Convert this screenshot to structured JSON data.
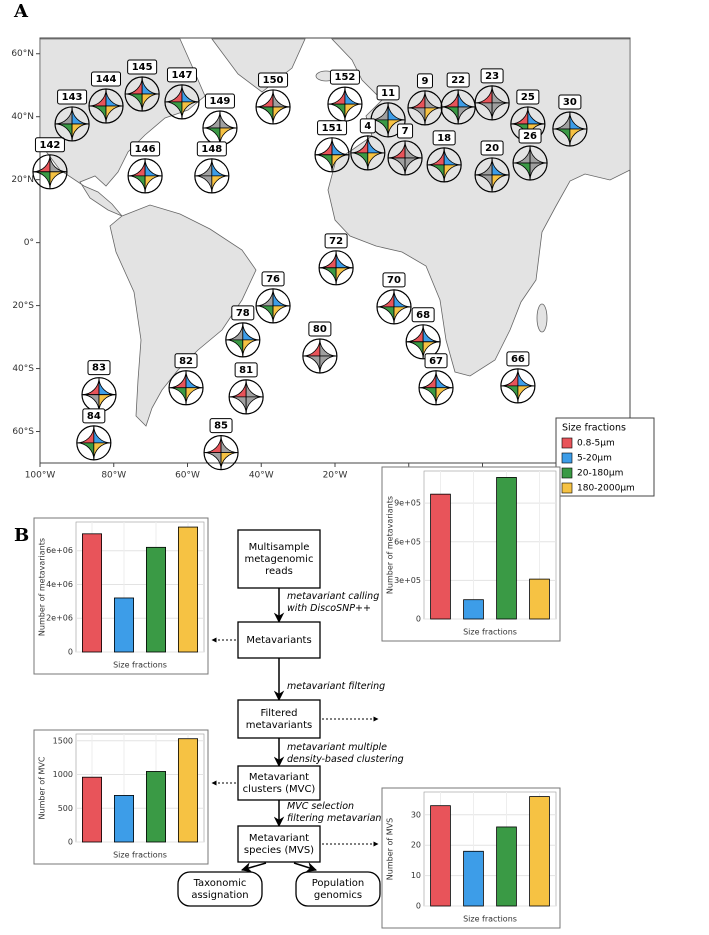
{
  "panel_labels": [
    "A",
    "B"
  ],
  "map": {
    "xlim": [
      -100,
      60
    ],
    "ylim": [
      -70,
      65
    ],
    "xticks": [
      {
        "value": -100,
        "label": "100°W"
      },
      {
        "value": -80,
        "label": "80°W"
      },
      {
        "value": -60,
        "label": "60°W"
      },
      {
        "value": -40,
        "label": "40°W"
      },
      {
        "value": -20,
        "label": "20°W"
      },
      {
        "value": 0,
        "label": "0°"
      },
      {
        "value": 20,
        "label": "20°E"
      },
      {
        "value": 40,
        "label": "40°E"
      },
      {
        "value": 60,
        "label": "60°E"
      }
    ],
    "yticks": [
      {
        "value": -60,
        "label": "60°S"
      },
      {
        "value": -40,
        "label": "40°S"
      },
      {
        "value": -20,
        "label": "20°S"
      },
      {
        "value": 0,
        "label": "0°"
      },
      {
        "value": 20,
        "label": "20°N"
      },
      {
        "value": 40,
        "label": "40°N"
      },
      {
        "value": 60,
        "label": "60°N"
      }
    ],
    "missing_color": "#a0a0a0",
    "legend": {
      "title": "Size fractions",
      "labels": [
        "0.8-5µm",
        "5-20µm",
        "20-180µm",
        "180-2000µm"
      ],
      "colors": [
        "#e8545a",
        "#3d9de8",
        "#3a9a45",
        "#f6c243"
      ]
    },
    "stations": [
      {
        "label": "142",
        "lon": -97.3,
        "lat": 22.5,
        "fractions": [
          true,
          false,
          true,
          true
        ]
      },
      {
        "label": "143",
        "lon": -91.3,
        "lat": 37.7,
        "fractions": [
          false,
          true,
          true,
          true
        ]
      },
      {
        "label": "144",
        "lon": -82.1,
        "lat": 43.4,
        "fractions": [
          true,
          true,
          true,
          true
        ]
      },
      {
        "label": "145",
        "lon": -72.3,
        "lat": 47.2,
        "fractions": [
          true,
          true,
          true,
          true
        ]
      },
      {
        "label": "147",
        "lon": -61.5,
        "lat": 44.7,
        "fractions": [
          true,
          true,
          true,
          true
        ]
      },
      {
        "label": "149",
        "lon": -51.2,
        "lat": 36.4,
        "fractions": [
          false,
          false,
          true,
          true
        ]
      },
      {
        "label": "146",
        "lon": -71.5,
        "lat": 21.2,
        "fractions": [
          true,
          true,
          true,
          true
        ]
      },
      {
        "label": "148",
        "lon": -53.4,
        "lat": 21.2,
        "fractions": [
          false,
          true,
          false,
          true
        ]
      },
      {
        "label": "150",
        "lon": -36.8,
        "lat": 43.1,
        "fractions": [
          true,
          false,
          true,
          true
        ]
      },
      {
        "label": "152",
        "lon": -17.3,
        "lat": 44.0,
        "fractions": [
          true,
          true,
          true,
          true
        ]
      },
      {
        "label": "151",
        "lon": -20.8,
        "lat": 27.9,
        "fractions": [
          true,
          true,
          true,
          true
        ]
      },
      {
        "label": "11",
        "lon": -5.6,
        "lat": 39.0,
        "fractions": [
          false,
          true,
          true,
          true
        ]
      },
      {
        "label": "4",
        "lon": -11.1,
        "lat": 28.5,
        "fractions": [
          true,
          true,
          true,
          true
        ]
      },
      {
        "label": "7",
        "lon": -1.0,
        "lat": 26.9,
        "fractions": [
          true,
          false,
          false,
          false
        ]
      },
      {
        "label": "9",
        "lon": 4.4,
        "lat": 42.8,
        "fractions": [
          true,
          false,
          false,
          true
        ]
      },
      {
        "label": "22",
        "lon": 13.4,
        "lat": 43.1,
        "fractions": [
          true,
          true,
          true,
          false
        ]
      },
      {
        "label": "23",
        "lon": 22.6,
        "lat": 44.4,
        "fractions": [
          true,
          false,
          false,
          false
        ]
      },
      {
        "label": "25",
        "lon": 32.3,
        "lat": 37.7,
        "fractions": [
          true,
          true,
          true,
          true
        ]
      },
      {
        "label": "30",
        "lon": 43.7,
        "lat": 36.1,
        "fractions": [
          false,
          true,
          true,
          true
        ]
      },
      {
        "label": "18",
        "lon": 9.6,
        "lat": 24.7,
        "fractions": [
          true,
          true,
          true,
          true
        ]
      },
      {
        "label": "20",
        "lon": 22.6,
        "lat": 21.5,
        "fractions": [
          false,
          true,
          false,
          true
        ]
      },
      {
        "label": "26",
        "lon": 32.9,
        "lat": 25.3,
        "fractions": [
          false,
          false,
          true,
          false
        ]
      },
      {
        "label": "72",
        "lon": -19.7,
        "lat": -8.0,
        "fractions": [
          true,
          true,
          true,
          true
        ]
      },
      {
        "label": "76",
        "lon": -36.8,
        "lat": -20.1,
        "fractions": [
          false,
          true,
          true,
          true
        ]
      },
      {
        "label": "70",
        "lon": -4.0,
        "lat": -20.4,
        "fractions": [
          true,
          true,
          true,
          true
        ]
      },
      {
        "label": "68",
        "lon": 3.9,
        "lat": -31.5,
        "fractions": [
          true,
          true,
          true,
          true
        ]
      },
      {
        "label": "78",
        "lon": -45.0,
        "lat": -30.9,
        "fractions": [
          false,
          true,
          true,
          true
        ]
      },
      {
        "label": "80",
        "lon": -24.1,
        "lat": -36.0,
        "fractions": [
          true,
          false,
          false,
          false
        ]
      },
      {
        "label": "67",
        "lon": 7.4,
        "lat": -46.1,
        "fractions": [
          true,
          true,
          true,
          true
        ]
      },
      {
        "label": "66",
        "lon": 29.6,
        "lat": -45.5,
        "fractions": [
          true,
          true,
          true,
          true
        ]
      },
      {
        "label": "82",
        "lon": -60.4,
        "lat": -46.1,
        "fractions": [
          true,
          true,
          true,
          true
        ]
      },
      {
        "label": "81",
        "lon": -44.1,
        "lat": -49.0,
        "fractions": [
          true,
          false,
          false,
          false
        ]
      },
      {
        "label": "83",
        "lon": -84.0,
        "lat": -48.3,
        "fractions": [
          true,
          true,
          false,
          true
        ]
      },
      {
        "label": "85",
        "lon": -50.9,
        "lat": -66.7,
        "fractions": [
          true,
          false,
          false,
          true
        ]
      },
      {
        "label": "84",
        "lon": -85.4,
        "lat": -63.6,
        "fractions": [
          true,
          true,
          true,
          true
        ]
      }
    ]
  },
  "flowchart": {
    "nodes": [
      {
        "lines": [
          "Multisample",
          "metagenomic",
          "reads"
        ]
      },
      {
        "lines": [
          "Metavariants"
        ]
      },
      {
        "lines": [
          "Filtered",
          "metavariants"
        ]
      },
      {
        "lines": [
          "Metavariant",
          "clusters (MVC)"
        ]
      },
      {
        "lines": [
          "Metavariant",
          "species (MVS)"
        ]
      },
      {
        "lines": [
          "Taxonomic",
          "assignation"
        ]
      },
      {
        "lines": [
          "Population",
          "genomics"
        ]
      }
    ],
    "edge_labels": [
      {
        "lines": [
          "metavariant calling",
          "with DiscoSNP++"
        ]
      },
      {
        "lines": [
          "metavariant filtering"
        ]
      },
      {
        "lines": [
          "metavariant multiple",
          "density-based clustering"
        ]
      },
      {
        "lines": [
          "MVC selection",
          "filtering metavariant in MVS"
        ]
      }
    ]
  },
  "chart_data": [
    {
      "type": "bar",
      "ylabel": "Number of metavariants",
      "xlabel": "Size fractions",
      "values": [
        7000000,
        3200000,
        6200000,
        7400000
      ],
      "colors": [
        "#e8545a",
        "#3d9de8",
        "#3a9a45",
        "#f6c243"
      ],
      "ylim": [
        0,
        7700000
      ],
      "yticks": [
        0,
        {
          "value": 2000000,
          "label": "2e+06"
        },
        {
          "value": 4000000,
          "label": "4e+06"
        },
        {
          "value": 6000000,
          "label": "6e+06"
        }
      ],
      "grid": true
    },
    {
      "type": "bar",
      "ylabel": "Number of metavariants",
      "xlabel": "Size fractions",
      "values": [
        970000,
        150000,
        1100000,
        310000
      ],
      "colors": [
        "#e8545a",
        "#3d9de8",
        "#3a9a45",
        "#f6c243"
      ],
      "ylim": [
        0,
        1150000
      ],
      "yticks": [
        0,
        {
          "value": 300000,
          "label": "3e+05"
        },
        {
          "value": 600000,
          "label": "6e+05"
        },
        {
          "value": 900000,
          "label": "9e+05"
        }
      ],
      "grid": true
    },
    {
      "type": "bar",
      "ylabel": "Number of MVC",
      "xlabel": "Size fractions",
      "values": [
        960,
        690,
        1045,
        1530
      ],
      "colors": [
        "#e8545a",
        "#3d9de8",
        "#3a9a45",
        "#f6c243"
      ],
      "ylim": [
        0,
        1600
      ],
      "yticks": [
        0,
        500,
        1000,
        1500
      ],
      "grid": true
    },
    {
      "type": "bar",
      "ylabel": "Number of MVS",
      "xlabel": "Size fractions",
      "values": [
        33,
        18,
        26,
        36
      ],
      "colors": [
        "#e8545a",
        "#3d9de8",
        "#3a9a45",
        "#f6c243"
      ],
      "ylim": [
        0,
        37.5
      ],
      "yticks": [
        0,
        10,
        20,
        30
      ],
      "grid": true
    }
  ]
}
